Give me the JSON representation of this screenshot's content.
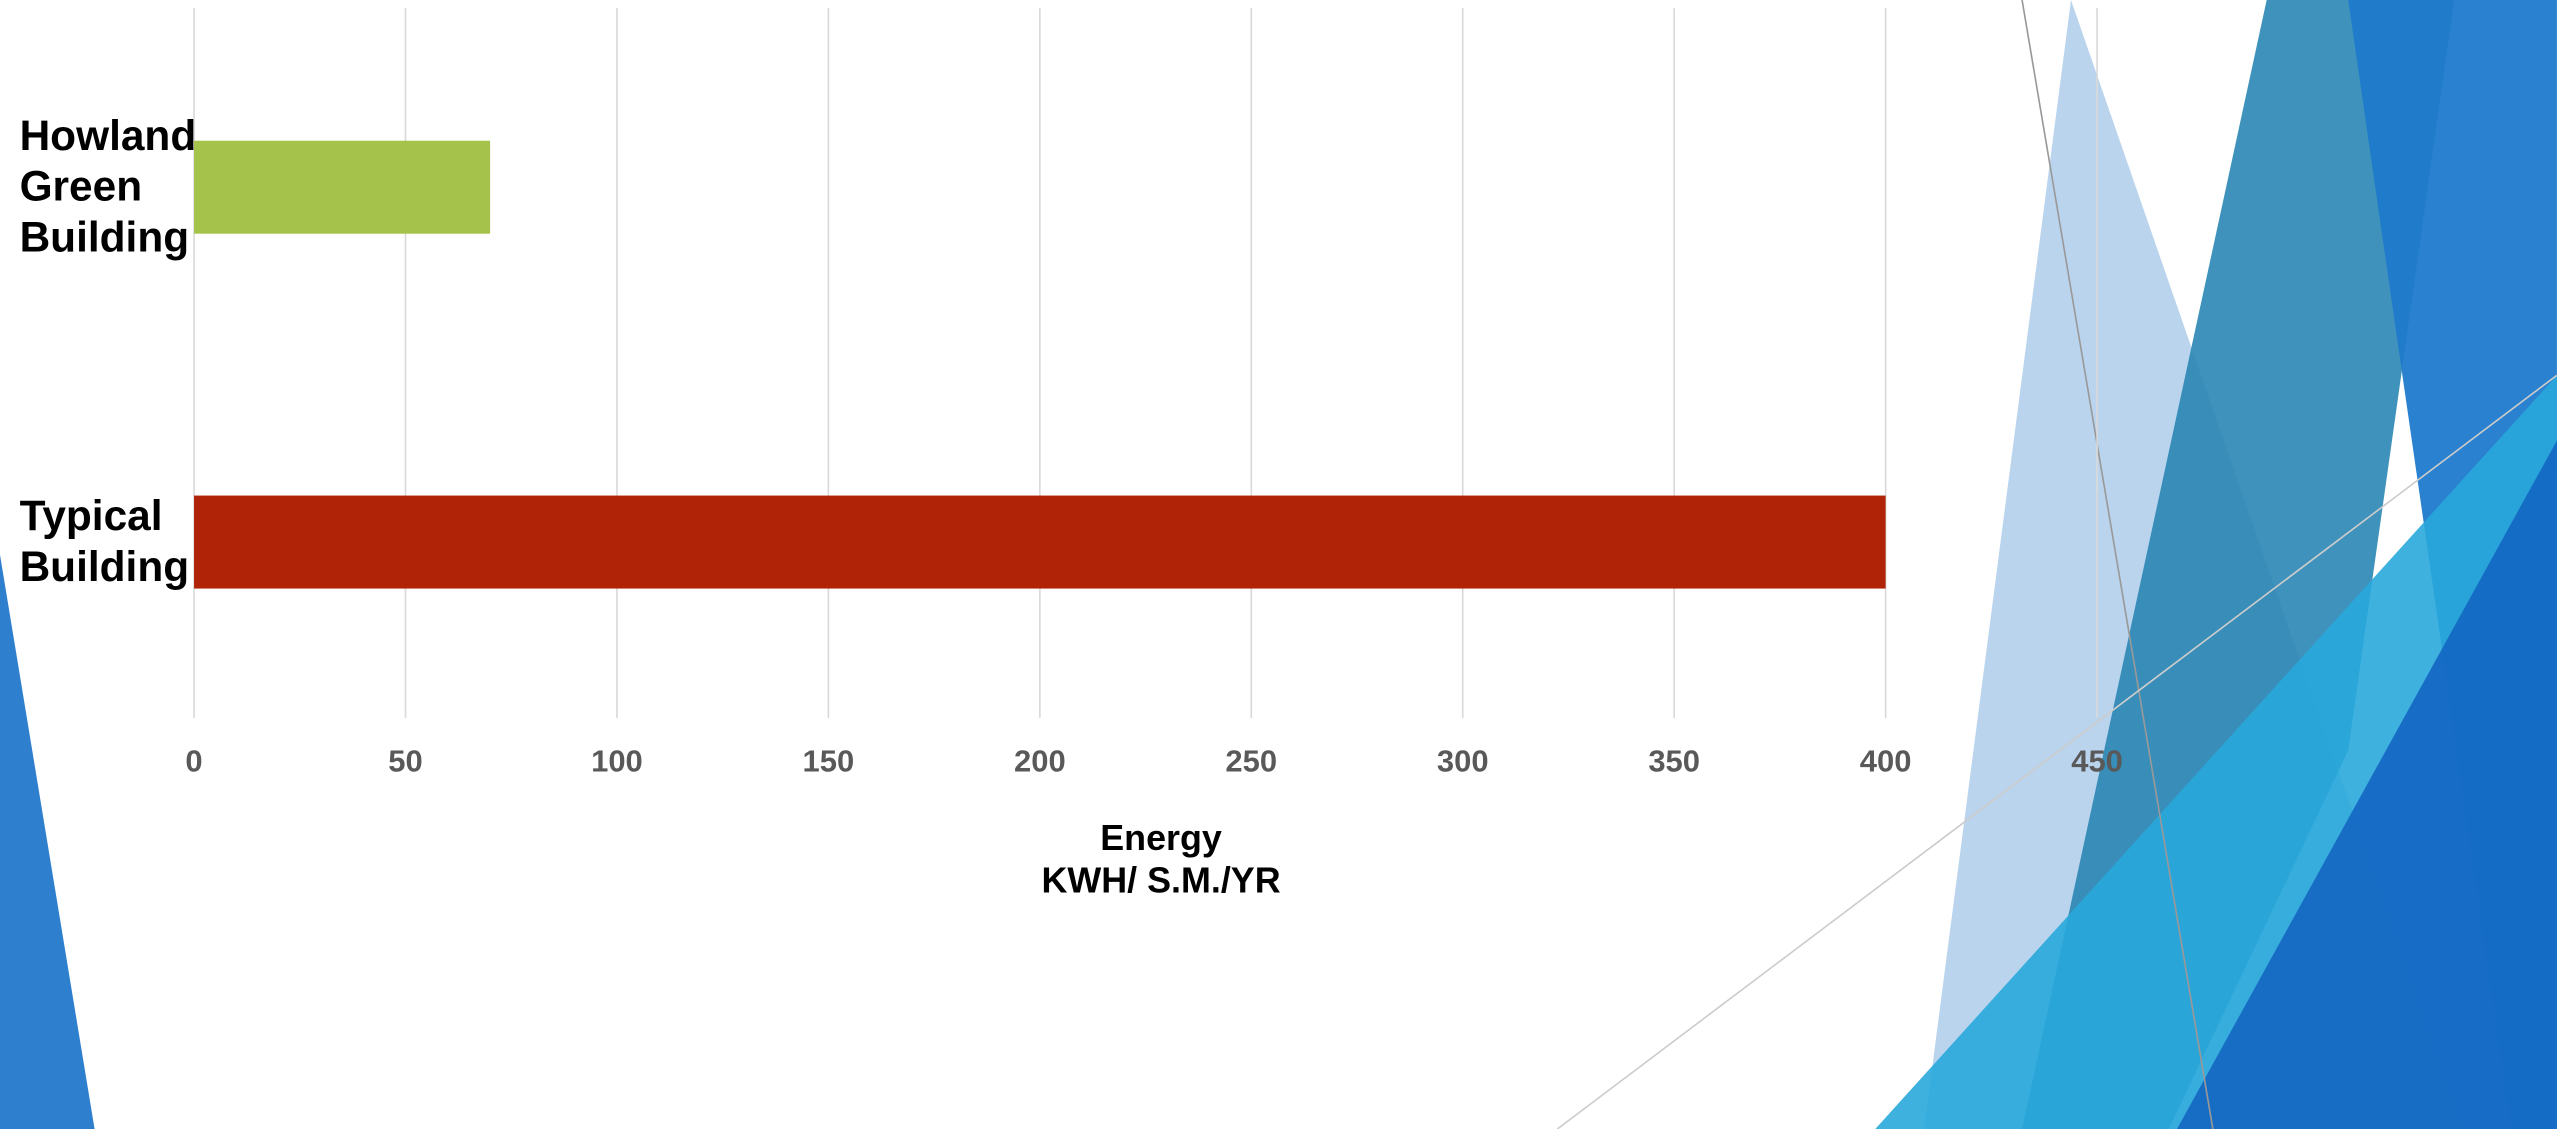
{
  "chart_data": {
    "type": "bar",
    "orientation": "horizontal",
    "categories": [
      "Howland Green Building",
      "Typical Building"
    ],
    "values": [
      70,
      400
    ],
    "colors": [
      "#a5c24b",
      "#b02306"
    ],
    "xlim": [
      0,
      450
    ],
    "xticks": [
      0,
      50,
      100,
      150,
      200,
      250,
      300,
      350,
      400,
      450
    ],
    "xlabel": "Energy\nKWH/ S.M./YR",
    "grid": true
  }
}
